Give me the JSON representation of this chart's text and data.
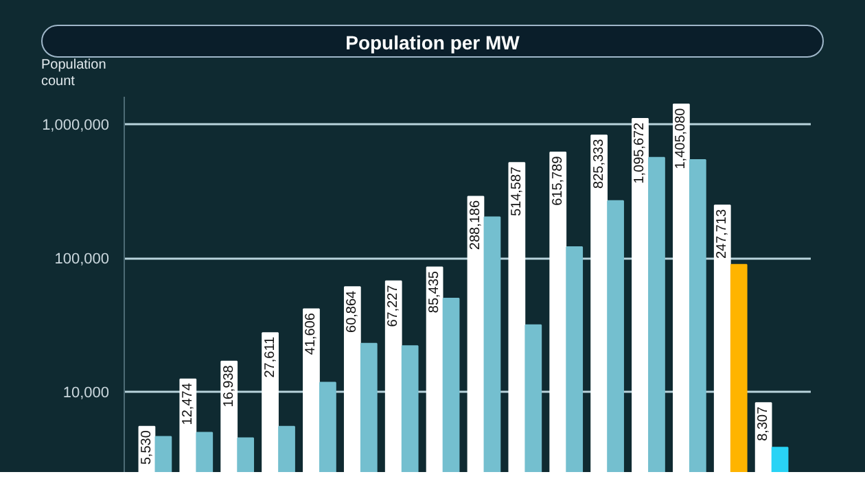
{
  "chart_data": {
    "type": "bar",
    "title": "Population per MW",
    "ylabel": "Population count",
    "categories": [
      null,
      null,
      null,
      null,
      null,
      null,
      null,
      null,
      null,
      null,
      null,
      null,
      null,
      null,
      null,
      null
    ],
    "series": [
      {
        "color": "#ffffff",
        "values": [
          5530,
          12474,
          16938,
          27611,
          41606,
          60864,
          67227,
          85435,
          288186,
          514587,
          615789,
          825333,
          1095672,
          1405080,
          247713,
          8307
        ],
        "value_labels": [
          "5,530",
          "12,474",
          "16,938",
          "27,611",
          "41,606",
          "60,864",
          "67,227",
          "85,435",
          "288,186",
          "514,587",
          "615,789",
          "825,333",
          "1,095,672",
          "1,405,080",
          "247,713",
          "8,307"
        ]
      },
      {
        "colors": [
          "#74bfcf",
          "#74bfcf",
          "#74bfcf",
          "#74bfcf",
          "#74bfcf",
          "#74bfcf",
          "#74bfcf",
          "#74bfcf",
          "#74bfcf",
          "#74bfcf",
          "#74bfcf",
          "#74bfcf",
          "#74bfcf",
          "#74bfcf",
          "#ffb400",
          "#29d3f5"
        ],
        "values": [
          4640,
          4990,
          4530,
          5530,
          11800,
          23000,
          22100,
          49900,
          202000,
          31600,
          121000,
          267000,
          562000,
          540000,
          89300,
          3860
        ]
      }
    ],
    "log": true,
    "ylim": [
      2500,
      1600000
    ],
    "yticks": [
      {
        "value": 10000,
        "label": "10,000"
      },
      {
        "value": 100000,
        "label": "100,000"
      },
      {
        "value": 1000000,
        "label": "1,000,000"
      }
    ],
    "grid": "y",
    "tick_labels": "y"
  }
}
